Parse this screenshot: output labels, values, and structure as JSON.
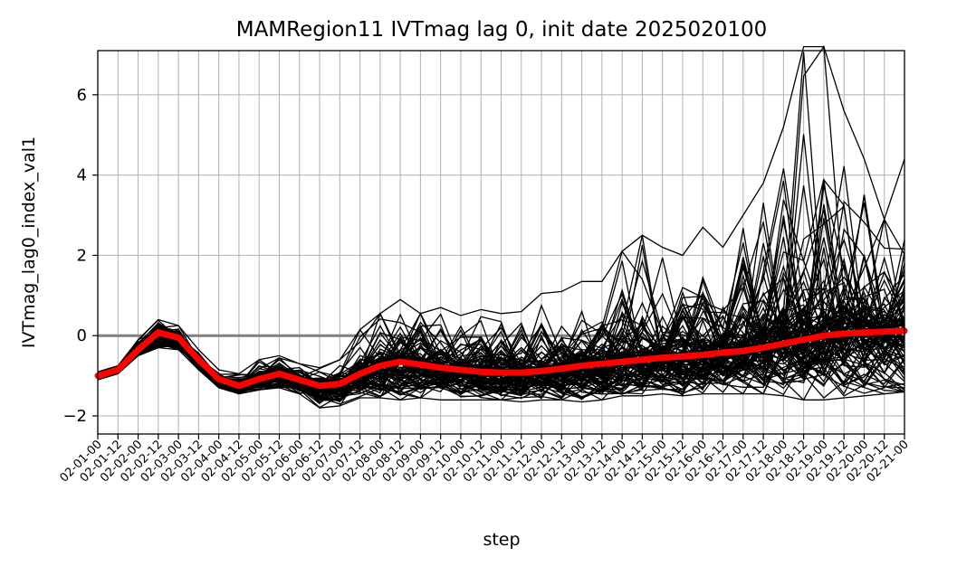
{
  "chart_data": {
    "type": "line",
    "title": "MAMRegion11 IVTmag lag 0, init date 2025020100",
    "xlabel": "step",
    "ylabel": "IVTmag_lag0_index_val1",
    "ylim": [
      -2.45,
      7.1
    ],
    "yticks": [
      -2,
      0,
      2,
      4,
      6
    ],
    "grid": true,
    "legend": "none",
    "reference_line": {
      "y": 0,
      "color": "#808080"
    },
    "categories": [
      "02-01-00",
      "02-01-12",
      "02-02-00",
      "02-02-12",
      "02-03-00",
      "02-03-12",
      "02-04-00",
      "02-04-12",
      "02-05-00",
      "02-05-12",
      "02-06-00",
      "02-06-12",
      "02-07-00",
      "02-07-12",
      "02-08-00",
      "02-08-12",
      "02-09-00",
      "02-09-12",
      "02-10-00",
      "02-10-12",
      "02-11-00",
      "02-11-12",
      "02-12-00",
      "02-12-12",
      "02-13-00",
      "02-13-12",
      "02-14-00",
      "02-14-12",
      "02-15-00",
      "02-15-12",
      "02-16-00",
      "02-16-12",
      "02-17-00",
      "02-17-12",
      "02-18-00",
      "02-18-12",
      "02-19-00",
      "02-19-12",
      "02-20-00",
      "02-20-12",
      "02-21-00"
    ],
    "ensemble": {
      "color": "#000000",
      "member_count": 100,
      "mean": [
        -1.0,
        -0.85,
        -0.35,
        0.08,
        -0.05,
        -0.6,
        -1.08,
        -1.25,
        -1.08,
        -0.95,
        -1.1,
        -1.25,
        -1.2,
        -0.95,
        -0.75,
        -0.65,
        -0.72,
        -0.8,
        -0.85,
        -0.9,
        -0.92,
        -0.92,
        -0.88,
        -0.82,
        -0.75,
        -0.7,
        -0.65,
        -0.6,
        -0.55,
        -0.52,
        -0.48,
        -0.42,
        -0.38,
        -0.3,
        -0.2,
        -0.1,
        0.0,
        0.05,
        0.08,
        0.1,
        0.12
      ],
      "lower": [
        -1.1,
        -0.95,
        -0.5,
        -0.3,
        -0.35,
        -0.85,
        -1.3,
        -1.45,
        -1.35,
        -1.3,
        -1.45,
        -1.8,
        -1.75,
        -1.55,
        -1.55,
        -1.6,
        -1.55,
        -1.6,
        -1.6,
        -1.6,
        -1.6,
        -1.65,
        -1.6,
        -1.6,
        -1.65,
        -1.6,
        -1.5,
        -1.5,
        -1.45,
        -1.5,
        -1.45,
        -1.45,
        -1.45,
        -1.45,
        -1.5,
        -1.6,
        -1.6,
        -1.55,
        -1.5,
        -1.45,
        -1.4
      ],
      "upper": [
        -0.9,
        -0.75,
        -0.1,
        0.4,
        0.25,
        -0.35,
        -0.85,
        -0.95,
        -0.6,
        -0.5,
        -0.7,
        -0.8,
        -0.6,
        0.15,
        0.55,
        0.9,
        0.55,
        0.7,
        0.5,
        0.65,
        0.55,
        0.6,
        1.05,
        1.1,
        1.35,
        1.35,
        2.1,
        2.5,
        2.2,
        2.0,
        2.7,
        2.2,
        3.0,
        3.8,
        5.2,
        7.2,
        7.2,
        5.6,
        4.4,
        2.9,
        4.4
      ]
    },
    "mean_line": {
      "color": "#ff0000",
      "values": [
        -1.0,
        -0.85,
        -0.35,
        0.08,
        -0.05,
        -0.6,
        -1.08,
        -1.25,
        -1.08,
        -0.95,
        -1.1,
        -1.25,
        -1.2,
        -0.95,
        -0.75,
        -0.65,
        -0.72,
        -0.8,
        -0.85,
        -0.9,
        -0.92,
        -0.92,
        -0.88,
        -0.82,
        -0.75,
        -0.7,
        -0.65,
        -0.6,
        -0.55,
        -0.52,
        -0.48,
        -0.42,
        -0.38,
        -0.3,
        -0.2,
        -0.1,
        0.0,
        0.05,
        0.08,
        0.1,
        0.12
      ]
    }
  }
}
